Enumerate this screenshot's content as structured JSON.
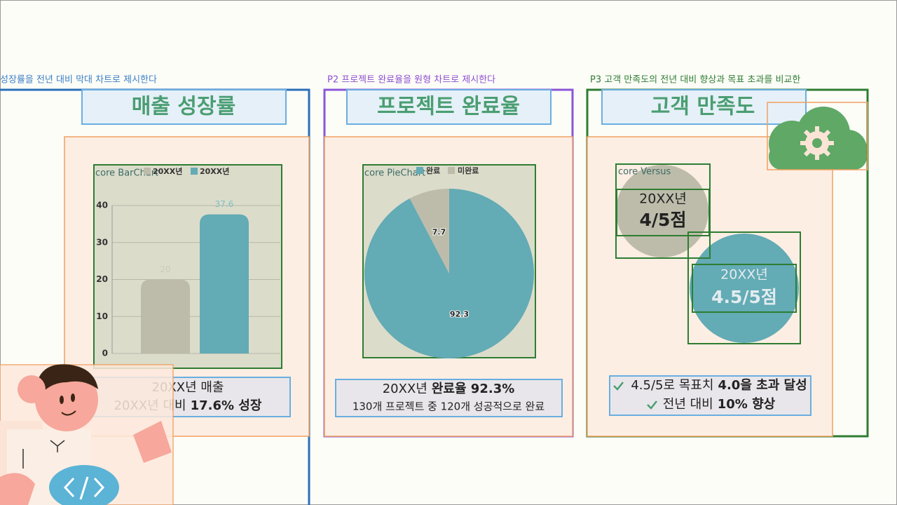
{
  "panels": [
    {
      "caption": "성장률을 전년 대비 막대 차트로 제시한다",
      "title": "매출 성장률",
      "summary": [
        {
          "text": "20XX년 매출"
        },
        {
          "text": "20XX년 대비",
          "bold": "17.6% 성장"
        }
      ]
    },
    {
      "caption": "P2 프로젝트 완료율을 원형 차트로 제시한다",
      "title": "프로젝트 완료율",
      "summary": [
        {
          "text": "20XX년",
          "bold": "완료율 92.3%"
        },
        {
          "text": "130개 프로젝트 중 120개 성공적으로 완료"
        }
      ]
    },
    {
      "caption": "P3 고객 만족도의 전년 대비 향상과 목표 초과를 비교한",
      "title": "고객 만족도",
      "versus": {
        "label": "core Versus",
        "items": [
          {
            "year": "20XX년",
            "score": "4/5점"
          },
          {
            "year": "20XX년",
            "score": "4.5/5점"
          }
        ]
      },
      "summary": [
        {
          "text": "4.5/5로 목표치",
          "bold": "4.0을 초과 달성"
        },
        {
          "text": "전년 대비",
          "bold": "10% 향상"
        }
      ]
    }
  ],
  "chart_data": [
    {
      "type": "bar",
      "label": "core BarChart",
      "categories": [
        null,
        null
      ],
      "series": [
        {
          "name": "20XX년",
          "color": "#bdbcaa",
          "values": [
            20,
            null
          ]
        },
        {
          "name": "20XX년",
          "color": "#63abb5",
          "values": [
            null,
            37.6
          ]
        }
      ],
      "ylim": [
        0,
        40
      ],
      "yticks": [
        0,
        10,
        20,
        30,
        40
      ],
      "grid": true
    },
    {
      "type": "pie",
      "label": "core PieChart",
      "categories": [
        "완료",
        "미완료"
      ],
      "values": [
        92.3,
        7.7
      ],
      "colors": [
        "#63abb5",
        "#bdbcaa"
      ]
    }
  ]
}
